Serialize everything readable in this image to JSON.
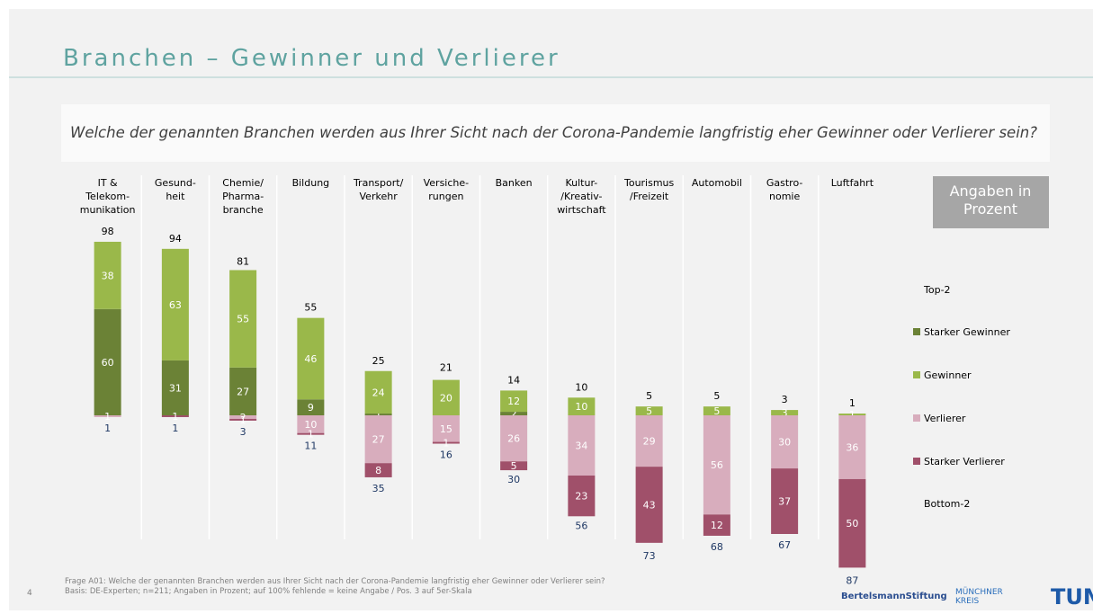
{
  "chart_data": {
    "type": "diverging-stacked-bar",
    "title": "Branchen – Gewinner und Verlierer",
    "subtitle": "Welche der genannten Branchen werden aus Ihrer Sicht nach der Corona-Pandemie langfristig eher Gewinner oder Verlierer sein?",
    "note": "Angaben in Prozent",
    "categories": [
      [
        "IT &",
        "Telekom-",
        "munikation"
      ],
      [
        "Gesund-",
        "heit"
      ],
      [
        "Chemie/",
        "Pharma-",
        "branche"
      ],
      [
        "Bildung"
      ],
      [
        "Transport/",
        "Verkehr"
      ],
      [
        "Versiche-",
        "rungen"
      ],
      [
        "Banken"
      ],
      [
        "Kultur-",
        "/Kreativ-",
        "wirtschaft"
      ],
      [
        "Tourismus",
        "/Freizeit"
      ],
      [
        "Automobil"
      ],
      [
        "Gastro-",
        "nomie"
      ],
      [
        "Luftfahrt"
      ]
    ],
    "series": [
      {
        "name": "Starker Gewinner",
        "color": "#6b8236",
        "direction": "up",
        "values": [
          60,
          31,
          27,
          9,
          1,
          null,
          2,
          null,
          null,
          null,
          null,
          null
        ]
      },
      {
        "name": "Gewinner",
        "color": "#9ab84a",
        "direction": "up",
        "values": [
          38,
          63,
          55,
          46,
          24,
          20,
          12,
          10,
          5,
          5,
          3,
          1
        ]
      },
      {
        "name": "Verlierer",
        "color": "#d8adbd",
        "direction": "down",
        "values": [
          1,
          null,
          2,
          10,
          27,
          15,
          26,
          34,
          29,
          56,
          30,
          36
        ]
      },
      {
        "name": "Starker Verlierer",
        "color": "#a0506a",
        "direction": "down",
        "values": [
          null,
          1,
          1,
          1,
          8,
          1,
          5,
          23,
          43,
          12,
          37,
          50
        ]
      }
    ],
    "top_name": "Top-2",
    "top_values": [
      98,
      94,
      81,
      55,
      25,
      21,
      14,
      10,
      5,
      5,
      3,
      1
    ],
    "bottom_name": "Bottom-2",
    "bottom_values": [
      1,
      1,
      3,
      11,
      35,
      16,
      30,
      56,
      73,
      68,
      67,
      87
    ],
    "ylim": [
      -90,
      100
    ],
    "footnotes": [
      "Frage A01: Welche der genannten Branchen werden aus Ihrer Sicht nach der Corona-Pandemie langfristig eher Gewinner oder Verlierer sein?",
      "Basis: DE-Experten; n=211; Angaben in Prozent; auf 100% fehlende = keine Angabe / Pos. 3 auf 5er-Skala"
    ],
    "page_number": "4",
    "logos": [
      "BertelsmannStiftung",
      "MÜNCHNER",
      "KREIS",
      "TUM"
    ]
  }
}
